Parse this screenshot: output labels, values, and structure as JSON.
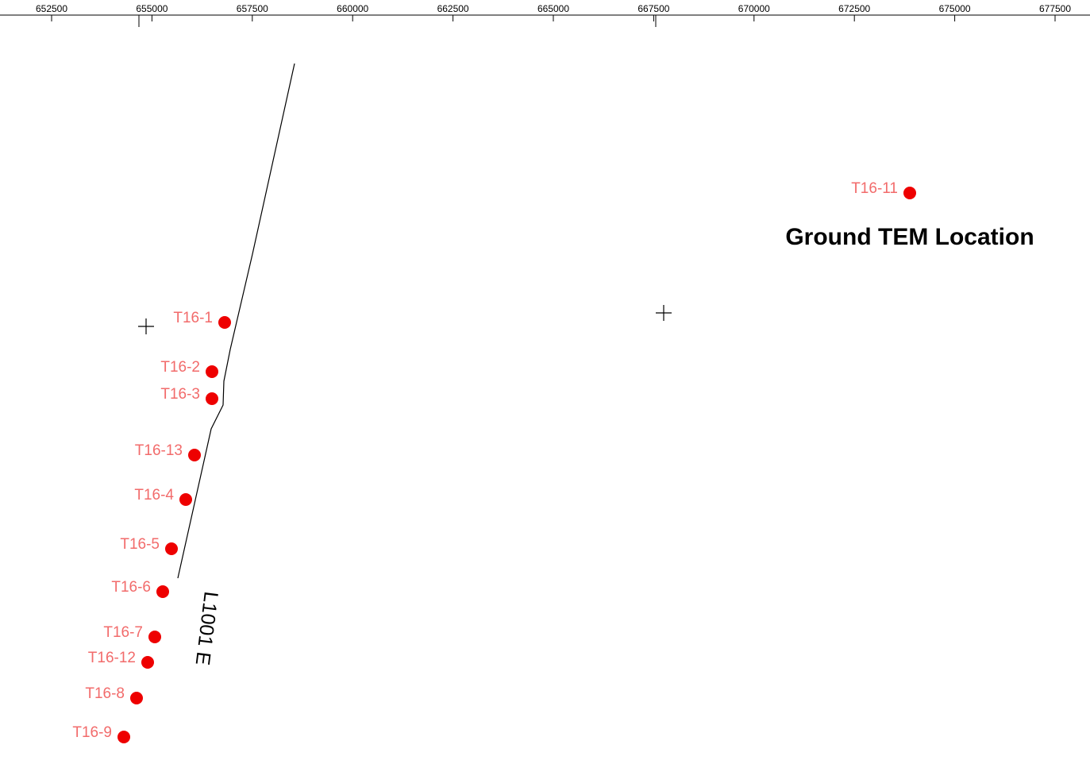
{
  "title": "Ground TEM Location",
  "axis": {
    "ticks": [
      652500,
      655000,
      657500,
      660000,
      662500,
      665000,
      667500,
      670000,
      672500,
      675000,
      677500
    ]
  },
  "line": {
    "label": "L1001 E"
  },
  "stations": [
    {
      "label": "T16-1"
    },
    {
      "label": "T16-2"
    },
    {
      "label": "T16-3"
    },
    {
      "label": "T16-13"
    },
    {
      "label": "T16-4"
    },
    {
      "label": "T16-5"
    },
    {
      "label": "T16-6"
    },
    {
      "label": "T16-7"
    },
    {
      "label": "T16-12"
    },
    {
      "label": "T16-8"
    },
    {
      "label": "T16-9"
    },
    {
      "label": "T16-11"
    }
  ]
}
